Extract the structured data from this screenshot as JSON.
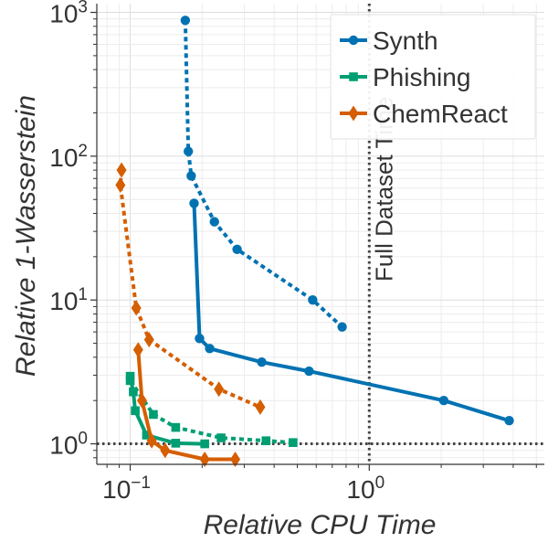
{
  "chart_data": {
    "type": "line",
    "xscale": "log",
    "yscale": "log",
    "xlabel": "Relative CPU Time",
    "ylabel": "Relative 1-Wasserstein",
    "xlim": [
      0.0725,
      5.4
    ],
    "ylim": [
      0.72,
      1150
    ],
    "x_ticks": [
      {
        "value": 0.1,
        "base": "10",
        "exp": "−1"
      },
      {
        "value": 1,
        "base": "10",
        "exp": "0"
      }
    ],
    "y_ticks": [
      {
        "value": 1,
        "base": "10",
        "exp": "0"
      },
      {
        "value": 10,
        "base": "10",
        "exp": "1"
      },
      {
        "value": 100,
        "base": "10",
        "exp": "2"
      },
      {
        "value": 1000,
        "base": "10",
        "exp": "3"
      }
    ],
    "grid": true,
    "reference_lines": [
      {
        "orientation": "vertical",
        "value": 1,
        "label": "Full Dataset Time",
        "style": "dotted"
      },
      {
        "orientation": "horizontal",
        "value": 1,
        "label": "",
        "style": "dotted"
      }
    ],
    "legend": {
      "position": "top-right"
    },
    "series": [
      {
        "name": "Synth",
        "color": "#0072b2",
        "marker": "circle",
        "solid": [
          [
            0.185,
            47
          ],
          [
            0.195,
            5.4
          ],
          [
            0.215,
            4.6
          ],
          [
            0.355,
            3.7
          ],
          [
            0.56,
            3.2
          ],
          [
            2.05,
            2.0
          ],
          [
            3.85,
            1.45
          ]
        ],
        "dashed": [
          [
            0.17,
            880
          ],
          [
            0.175,
            108
          ],
          [
            0.18,
            73
          ],
          [
            0.225,
            35
          ],
          [
            0.28,
            22.5
          ],
          [
            0.58,
            10.0
          ],
          [
            0.77,
            6.5
          ]
        ]
      },
      {
        "name": "Phishing",
        "color": "#009e73",
        "marker": "square",
        "solid": [
          [
            0.1,
            2.95
          ],
          [
            0.103,
            2.3
          ],
          [
            0.105,
            1.7
          ],
          [
            0.117,
            1.15
          ],
          [
            0.155,
            1.01
          ],
          [
            0.205,
            1.0
          ]
        ],
        "dashed": [
          [
            0.1,
            2.75
          ],
          [
            0.125,
            1.6
          ],
          [
            0.155,
            1.3
          ],
          [
            0.24,
            1.1
          ],
          [
            0.37,
            1.05
          ],
          [
            0.48,
            1.02
          ]
        ]
      },
      {
        "name": "ChemReact",
        "color": "#d55e00",
        "marker": "thin_diamond",
        "solid": [
          [
            0.108,
            4.5
          ],
          [
            0.112,
            2.0
          ],
          [
            0.123,
            1.05
          ],
          [
            0.14,
            0.9
          ],
          [
            0.205,
            0.78
          ],
          [
            0.275,
            0.78
          ]
        ],
        "dashed": [
          [
            0.092,
            80
          ],
          [
            0.091,
            63
          ],
          [
            0.106,
            8.8
          ],
          [
            0.12,
            5.3
          ],
          [
            0.235,
            2.4
          ],
          [
            0.35,
            1.8
          ]
        ]
      }
    ]
  }
}
